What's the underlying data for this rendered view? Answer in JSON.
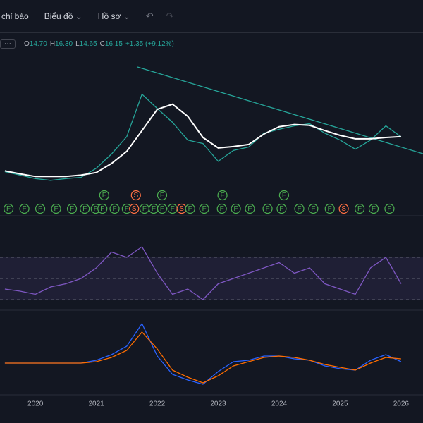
{
  "toolbar": {
    "items": [
      "chỉ báo",
      "Biểu đồ",
      "Hồ sơ"
    ]
  },
  "legend": {
    "ohlc": [
      {
        "key": "O",
        "value": "14.70"
      },
      {
        "key": "H",
        "value": "16.30"
      },
      {
        "key": "L",
        "value": "14.65"
      },
      {
        "key": "C",
        "value": "16.15"
      }
    ],
    "change": "+1.35 (+9.12%)"
  },
  "chart_data": [
    {
      "type": "line",
      "xlim": [
        2019.42,
        2026.36
      ],
      "ylim": [
        4.6,
        38.0
      ],
      "x": [
        2019.5,
        2019.75,
        2020.0,
        2020.25,
        2020.5,
        2020.75,
        2021.0,
        2021.25,
        2021.5,
        2021.75,
        2022.0,
        2022.25,
        2022.5,
        2022.75,
        2023.0,
        2023.25,
        2023.5,
        2023.75,
        2024.0,
        2024.25,
        2024.5,
        2024.75,
        2025.0,
        2025.25,
        2025.5,
        2025.75,
        2026.0
      ],
      "series": [
        {
          "color": "#26a69a",
          "values": [
            8.1,
            7.3,
            6.5,
            6.1,
            6.5,
            6.8,
            8.9,
            12.2,
            16.2,
            26.0,
            22.7,
            19.5,
            15.4,
            14.6,
            10.5,
            13.0,
            13.8,
            17.0,
            17.9,
            18.7,
            19.2,
            17.0,
            15.4,
            13.3,
            15.4,
            18.7,
            16.15
          ]
        },
        {
          "color": "#ffffff",
          "values": [
            8.3,
            7.6,
            7.0,
            7.0,
            7.0,
            7.3,
            7.9,
            10.0,
            12.8,
            17.6,
            22.5,
            23.7,
            20.9,
            16.0,
            13.6,
            13.9,
            14.4,
            16.8,
            18.5,
            19.0,
            18.8,
            17.6,
            16.5,
            15.7,
            15.7,
            16.0,
            16.2
          ]
        }
      ],
      "events": [
        {
          "x": 2019.56,
          "label": "F"
        },
        {
          "x": 2019.82,
          "label": "F"
        },
        {
          "x": 2020.08,
          "label": "F"
        },
        {
          "x": 2020.34,
          "label": "F"
        },
        {
          "x": 2020.6,
          "label": "F"
        },
        {
          "x": 2020.81,
          "label": "F"
        },
        {
          "x": 2020.99,
          "label": "F"
        },
        {
          "x": 2021.1,
          "label": "F"
        },
        {
          "x": 2021.3,
          "label": "F"
        },
        {
          "x": 2021.5,
          "label": "F"
        },
        {
          "x": 2021.62,
          "label": "S"
        },
        {
          "x": 2021.79,
          "label": "F"
        },
        {
          "x": 2021.94,
          "label": "F"
        },
        {
          "x": 2022.08,
          "label": "F"
        },
        {
          "x": 2022.25,
          "label": "F"
        },
        {
          "x": 2022.4,
          "label": "S"
        },
        {
          "x": 2022.54,
          "label": "F"
        },
        {
          "x": 2022.77,
          "label": "F"
        },
        {
          "x": 2023.06,
          "label": "F"
        },
        {
          "x": 2023.29,
          "label": "F"
        },
        {
          "x": 2023.52,
          "label": "F"
        },
        {
          "x": 2023.81,
          "label": "F"
        },
        {
          "x": 2024.04,
          "label": "F"
        },
        {
          "x": 2024.33,
          "label": "F"
        },
        {
          "x": 2024.56,
          "label": "F"
        },
        {
          "x": 2024.83,
          "label": "F"
        },
        {
          "x": 2025.06,
          "label": "S"
        },
        {
          "x": 2025.32,
          "label": "F"
        },
        {
          "x": 2025.55,
          "label": "F"
        },
        {
          "x": 2025.81,
          "label": "F"
        },
        {
          "x": 2021.13,
          "label": "F"
        },
        {
          "x": 2021.65,
          "label": "S"
        },
        {
          "x": 2022.08,
          "label": "F"
        },
        {
          "x": 2023.07,
          "label": "F"
        },
        {
          "x": 2024.08,
          "label": "F"
        }
      ],
      "event_colors": {
        "F": "#4caf50",
        "S": "#ff7043"
      }
    },
    {
      "type": "line",
      "xlim": [
        2019.42,
        2026.36
      ],
      "ylim": [
        20,
        86.7
      ],
      "levels": [
        70,
        50,
        30
      ],
      "x": [
        2019.5,
        2019.75,
        2020.0,
        2020.25,
        2020.5,
        2020.75,
        2021.0,
        2021.25,
        2021.5,
        2021.75,
        2022.0,
        2022.25,
        2022.5,
        2022.75,
        2023.0,
        2023.25,
        2023.5,
        2023.75,
        2024.0,
        2024.25,
        2024.5,
        2024.75,
        2025.0,
        2025.25,
        2025.5,
        2025.75,
        2026.0
      ],
      "series": [
        {
          "color": "#7e57c2",
          "values": [
            40,
            38,
            35,
            42,
            45,
            50,
            60,
            75,
            70,
            80,
            55,
            35,
            40,
            30,
            45,
            50,
            55,
            60,
            65,
            55,
            60,
            45,
            40,
            35,
            60,
            70,
            45
          ]
        }
      ]
    },
    {
      "type": "line",
      "xlim": [
        2019.42,
        2026.36
      ],
      "ylim": [
        -2.75,
        3.75
      ],
      "x": [
        2019.5,
        2019.75,
        2020.0,
        2020.25,
        2020.5,
        2020.75,
        2021.0,
        2021.25,
        2021.5,
        2021.75,
        2022.0,
        2022.25,
        2022.5,
        2022.75,
        2023.0,
        2023.25,
        2023.5,
        2023.75,
        2024.0,
        2024.25,
        2024.5,
        2024.75,
        2025.0,
        2025.25,
        2025.5,
        2025.75,
        2026.0
      ],
      "xticks": [
        2020,
        2021,
        2022,
        2023,
        2024,
        2025,
        2026
      ],
      "series": [
        {
          "color": "#2962ff",
          "values": [
            0,
            0,
            0,
            0,
            0,
            0,
            0.2,
            0.6,
            1.2,
            2.8,
            0.5,
            -0.8,
            -1.2,
            -1.5,
            -0.6,
            0.1,
            0.2,
            0.5,
            0.5,
            0.3,
            0.2,
            -0.2,
            -0.4,
            -0.5,
            0.2,
            0.6,
            0.1
          ]
        },
        {
          "color": "#ff6d00",
          "values": [
            0,
            0,
            0,
            0,
            0,
            0,
            0.1,
            0.4,
            0.9,
            2.2,
            1.0,
            -0.5,
            -1.0,
            -1.4,
            -0.9,
            -0.2,
            0.1,
            0.4,
            0.5,
            0.4,
            0.2,
            -0.1,
            -0.3,
            -0.5,
            0,
            0.4,
            0.3
          ]
        }
      ]
    }
  ]
}
